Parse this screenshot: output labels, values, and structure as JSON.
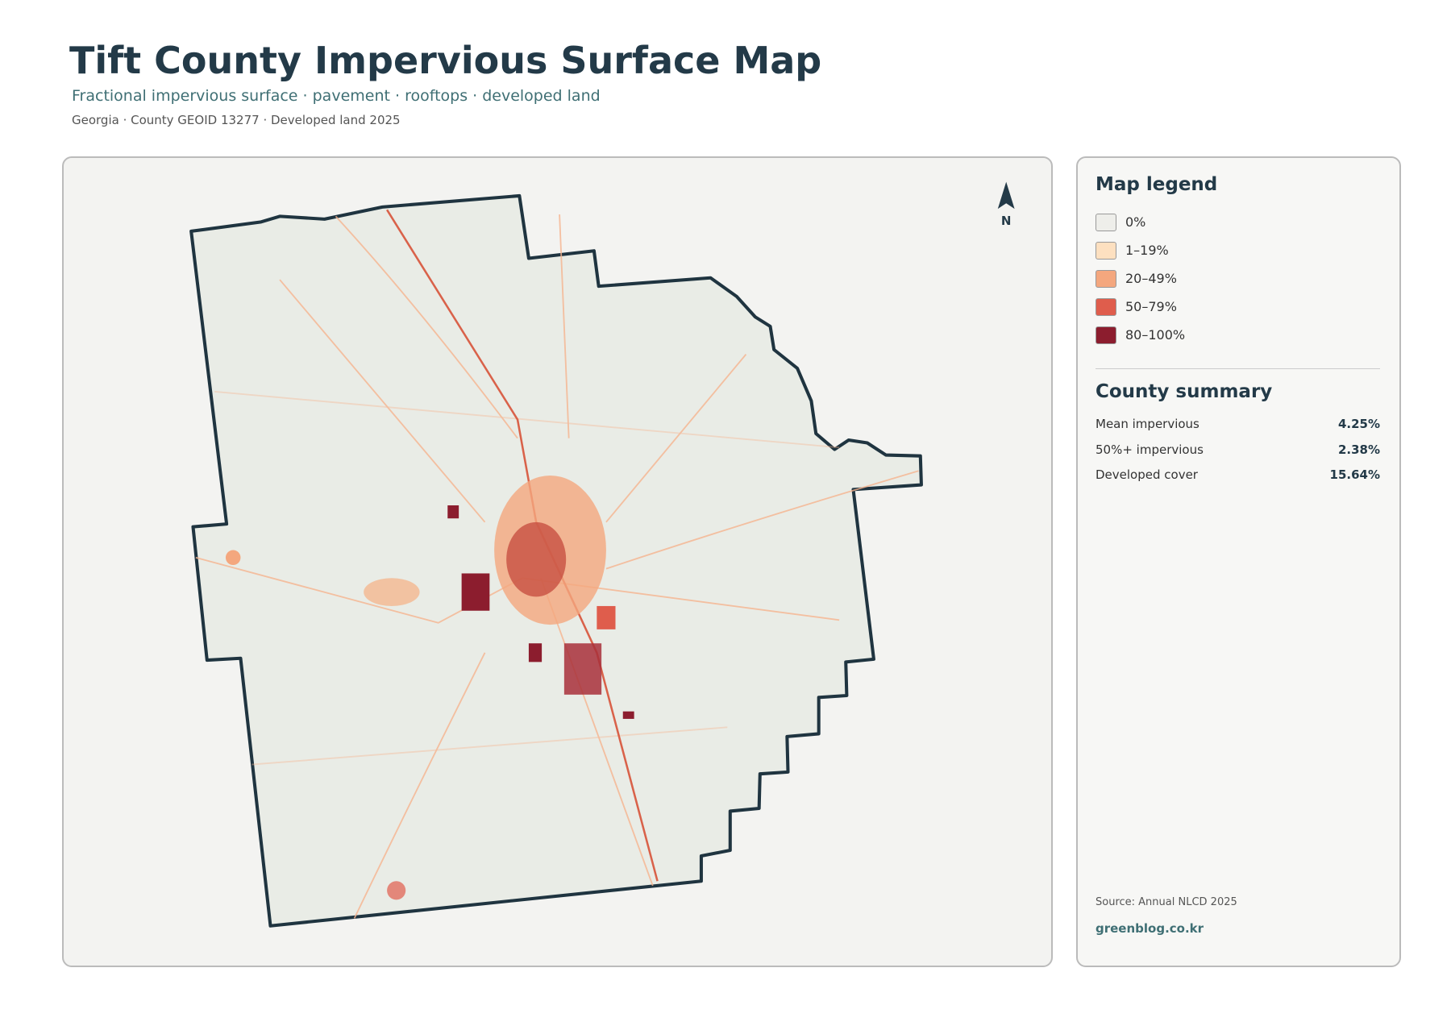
{
  "header": {
    "title": "Tift County Impervious Surface Map",
    "subtitle": "Fractional impervious surface · pavement · rooftops · developed land",
    "meta": "Georgia · County GEOID 13277 · Developed land 2025"
  },
  "map": {
    "north_label": "N"
  },
  "legend": {
    "title": "Map legend",
    "items": [
      {
        "label": "0%",
        "color": "#eeeeea"
      },
      {
        "label": "1–19%",
        "color": "#fde0c0"
      },
      {
        "label": "20–49%",
        "color": "#f4a77e"
      },
      {
        "label": "50–79%",
        "color": "#df5d4c"
      },
      {
        "label": "80–100%",
        "color": "#8c1d2e"
      }
    ]
  },
  "summary": {
    "title": "County summary",
    "rows": [
      {
        "label": "Mean impervious",
        "value": "4.25%"
      },
      {
        "label": "50%+ impervious",
        "value": "2.38%"
      },
      {
        "label": "Developed cover",
        "value": "15.64%"
      }
    ]
  },
  "footer": {
    "source": "Source: Annual NLCD 2025",
    "site": "greenblog.co.kr"
  }
}
